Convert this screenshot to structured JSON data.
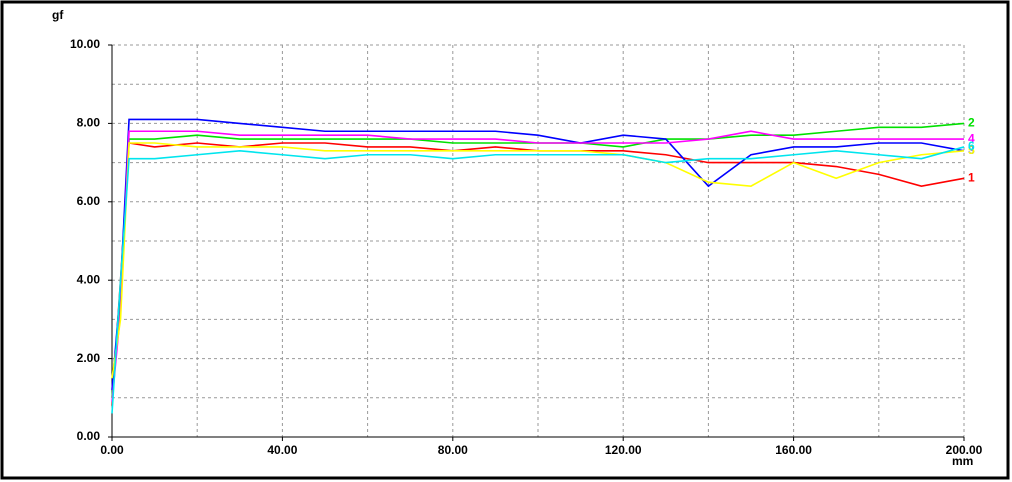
{
  "chart_data": {
    "type": "line",
    "y_label": "gf",
    "x_label": "mm",
    "x": [
      0,
      2,
      4,
      10,
      20,
      30,
      40,
      50,
      60,
      70,
      80,
      90,
      100,
      110,
      120,
      130,
      140,
      150,
      160,
      170,
      180,
      190,
      200
    ],
    "xlim": [
      0,
      200
    ],
    "ylim": [
      0,
      10
    ],
    "xticks": [
      {
        "value": 0,
        "label": "0.00"
      },
      {
        "value": 40,
        "label": "40.00"
      },
      {
        "value": 80,
        "label": "80.00"
      },
      {
        "value": 120,
        "label": "120.00"
      },
      {
        "value": 160,
        "label": "160.00"
      },
      {
        "value": 200,
        "label": "200.00"
      }
    ],
    "yticks": [
      {
        "value": 0,
        "label": "0.00"
      },
      {
        "value": 2,
        "label": "2.00"
      },
      {
        "value": 4,
        "label": "4.00"
      },
      {
        "value": 6,
        "label": "6.00"
      },
      {
        "value": 8,
        "label": "8.00"
      },
      {
        "value": 10,
        "label": "10.00"
      }
    ],
    "xgrid": [
      20,
      40,
      60,
      80,
      100,
      120,
      140,
      160,
      180,
      200
    ],
    "ygrid": [
      1,
      2,
      3,
      4,
      5,
      6,
      7,
      8,
      9,
      10
    ],
    "grid": true,
    "series": [
      {
        "name": "1",
        "color": "#ff0000",
        "values": [
          0.8,
          4,
          7.5,
          7.4,
          7.5,
          7.4,
          7.5,
          7.5,
          7.4,
          7.4,
          7.3,
          7.4,
          7.3,
          7.3,
          7.3,
          7.2,
          7.0,
          7.0,
          7.0,
          6.9,
          6.7,
          6.4,
          6.6
        ]
      },
      {
        "name": "2",
        "color": "#00e000",
        "values": [
          1,
          3.5,
          7.6,
          7.6,
          7.7,
          7.6,
          7.6,
          7.6,
          7.6,
          7.6,
          7.5,
          7.5,
          7.5,
          7.5,
          7.4,
          7.6,
          7.6,
          7.7,
          7.7,
          7.8,
          7.9,
          7.9,
          8.0
        ]
      },
      {
        "name": "3",
        "color": "#0000ff",
        "values": [
          1.2,
          3.8,
          8.1,
          8.1,
          8.1,
          8.0,
          7.9,
          7.8,
          7.8,
          7.8,
          7.8,
          7.8,
          7.7,
          7.5,
          7.7,
          7.6,
          6.4,
          7.2,
          7.4,
          7.4,
          7.5,
          7.5,
          7.3
        ]
      },
      {
        "name": "4",
        "color": "#ff00ff",
        "values": [
          0.9,
          3.2,
          7.8,
          7.8,
          7.8,
          7.7,
          7.7,
          7.7,
          7.7,
          7.6,
          7.6,
          7.6,
          7.5,
          7.5,
          7.5,
          7.5,
          7.6,
          7.8,
          7.6,
          7.6,
          7.6,
          7.6,
          7.6
        ]
      },
      {
        "name": "5",
        "color": "#ffff00",
        "values": [
          1.5,
          3,
          7.5,
          7.5,
          7.4,
          7.4,
          7.4,
          7.3,
          7.3,
          7.3,
          7.3,
          7.3,
          7.3,
          7.3,
          7.2,
          7.0,
          6.5,
          6.4,
          7.0,
          6.6,
          7.0,
          7.2,
          7.3
        ]
      },
      {
        "name": "6",
        "color": "#00e5ee",
        "values": [
          0.6,
          4,
          7.1,
          7.1,
          7.2,
          7.3,
          7.2,
          7.1,
          7.2,
          7.2,
          7.1,
          7.2,
          7.2,
          7.2,
          7.2,
          7.0,
          7.1,
          7.1,
          7.2,
          7.3,
          7.2,
          7.1,
          7.4
        ]
      }
    ]
  }
}
